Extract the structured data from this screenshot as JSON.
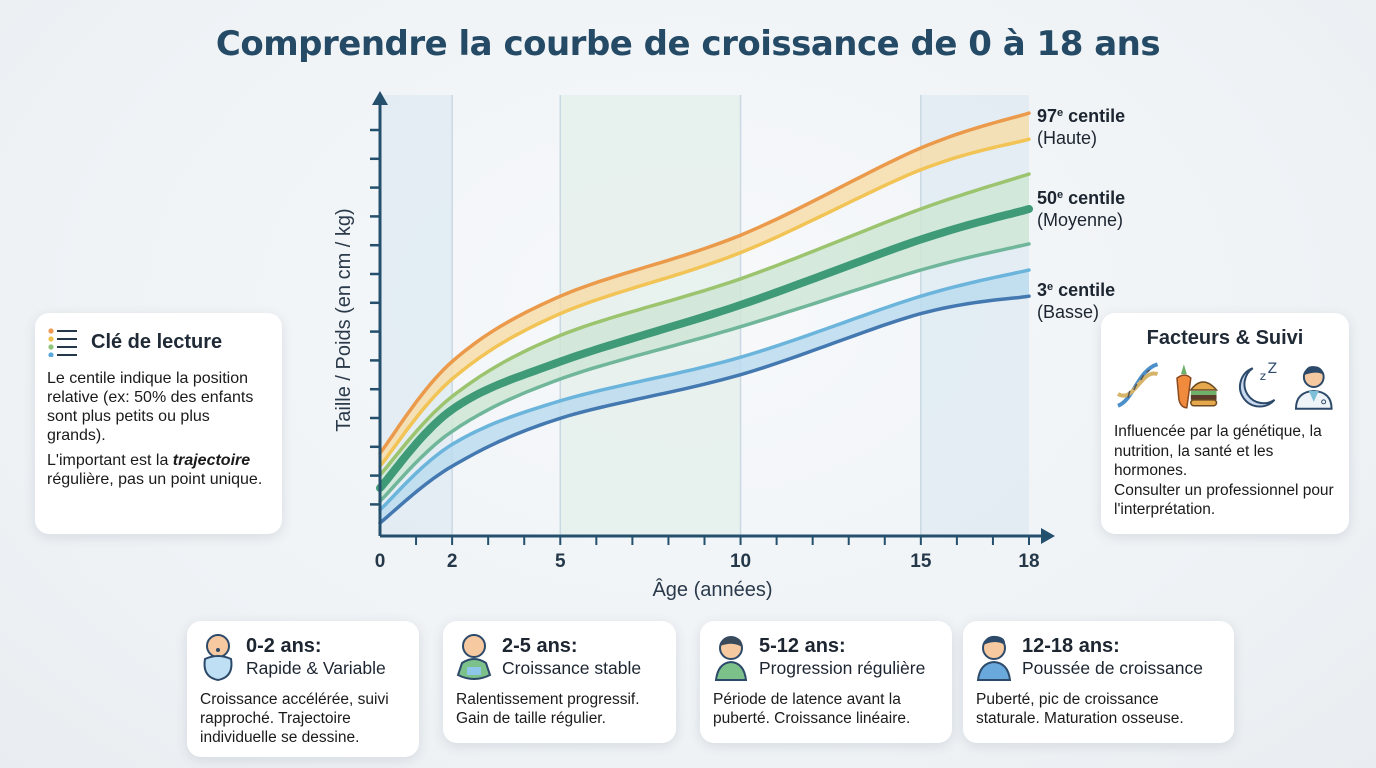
{
  "title": "Comprendre la courbe de croissance de 0 à 18 ans",
  "legend_card": {
    "icon": "list-icon",
    "title": "Clé de lecture",
    "text1": "Le centile indique la position relative (ex: 50% des enfants sont plus petits ou plus grands).",
    "text2_em": "trajectoire",
    "text2_pre": "L'important est la ",
    "text2_post": " régulière, pas un point unique."
  },
  "factors_card": {
    "title": "Facteurs & Suivi",
    "icons": [
      "dna-icon",
      "food-icon",
      "sleep-moon-icon",
      "doctor-icon"
    ],
    "text1": "Influencée par la génétique, la nutrition, la santé et les hormones.",
    "text2": "Consulter un professionnel pour l'interprétation."
  },
  "centile_labels": [
    {
      "rank": "97",
      "sup": "e",
      "word": " centile",
      "desc": "(Haute)"
    },
    {
      "rank": "50",
      "sup": "e",
      "word": " centile",
      "desc": "(Moyenne)"
    },
    {
      "rank": "3",
      "sup": "e",
      "word": " centile",
      "desc": "(Basse)"
    }
  ],
  "phases": [
    {
      "range": "0-2 ans:",
      "subtitle": "Rapide & Variable",
      "text": "Croissance accélérée, suivi rapproché. Trajectoire individuelle se dessine.",
      "icon": "newborn-icon"
    },
    {
      "range": "2-5 ans:",
      "subtitle": "Croissance stable",
      "text": "Ralentissement progressif. Gain de taille régulier.",
      "icon": "toddler-icon"
    },
    {
      "range": "5-12 ans:",
      "subtitle": "Progression régulière",
      "text": "Période de latence avant la puberté. Croissance linéaire.",
      "icon": "child-icon"
    },
    {
      "range": "12-18 ans:",
      "subtitle": "Poussée de croissance",
      "text": "Puberté, pic de croissance staturale. Maturation osseuse.",
      "icon": "teen-icon"
    }
  ],
  "chart_data": {
    "type": "line",
    "xlabel": "Âge (années)",
    "ylabel": "Taille / Poids (en cm / kg)",
    "xlim": [
      0,
      18
    ],
    "ylim": [
      0,
      100
    ],
    "x_ticks": [
      0,
      2,
      5,
      10,
      15,
      18
    ],
    "y_tick_labels": "none",
    "grid": "vertical lines at 2, 5, 10, 15",
    "age_zones": [
      {
        "from": 0,
        "to": 2,
        "color": "#dde9f2"
      },
      {
        "from": 5,
        "to": 10,
        "color": "#e3efe9"
      },
      {
        "from": 15,
        "to": 18,
        "color": "#dde9f2"
      }
    ],
    "x": [
      0,
      2,
      5,
      10,
      15,
      18
    ],
    "series": [
      {
        "id": "p97_upper",
        "color": "#ea9a4a",
        "values": [
          19,
          40,
          55,
          69,
          89,
          97
        ]
      },
      {
        "id": "p97_lower",
        "color": "#f2c355",
        "values": [
          16,
          36,
          51,
          65,
          84,
          91
        ]
      },
      {
        "id": "p50_upper",
        "color": "#9cc46e",
        "values": [
          14,
          32,
          46,
          59,
          75,
          83
        ]
      },
      {
        "id": "p50",
        "color": "#3f9a78",
        "values": [
          11,
          29,
          40,
          53,
          68,
          75
        ]
      },
      {
        "id": "p50_lower",
        "color": "#6fb69a",
        "values": [
          8,
          24,
          36,
          48,
          61,
          67
        ]
      },
      {
        "id": "p3_upper",
        "color": "#6bb4dc",
        "values": [
          6,
          21,
          31,
          41,
          55,
          61
        ]
      },
      {
        "id": "p3",
        "color": "#4478b0",
        "values": [
          3,
          16,
          27,
          37,
          51,
          55
        ]
      }
    ],
    "bands": [
      {
        "between": [
          "p97_upper",
          "p97_lower"
        ],
        "color": "#f7ddaa"
      },
      {
        "between": [
          "p50_upper",
          "p50_lower"
        ],
        "color": "#cfe6d6"
      },
      {
        "between": [
          "p3_upper",
          "p3"
        ],
        "color": "#bcdcef"
      }
    ]
  }
}
